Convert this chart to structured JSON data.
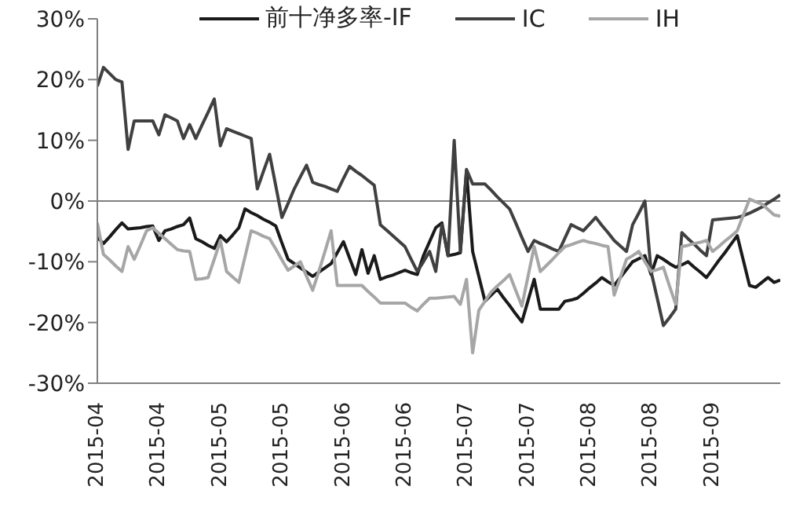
{
  "chart_data": {
    "type": "line",
    "categories": [
      "2015-04",
      null,
      null,
      null,
      null,
      null,
      null,
      null,
      null,
      null,
      "2015-04",
      null,
      null,
      null,
      null,
      null,
      null,
      null,
      null,
      null,
      "2015-05",
      null,
      null,
      null,
      null,
      null,
      null,
      null,
      null,
      null,
      "2015-05",
      null,
      null,
      null,
      null,
      null,
      null,
      null,
      null,
      null,
      "2015-06",
      null,
      null,
      null,
      null,
      null,
      null,
      null,
      null,
      null,
      "2015-06",
      null,
      null,
      null,
      null,
      null,
      null,
      null,
      null,
      null,
      "2015-07",
      null,
      null,
      null,
      null,
      null,
      null,
      null,
      null,
      null,
      "2015-07",
      null,
      null,
      null,
      null,
      null,
      null,
      null,
      null,
      null,
      "2015-08",
      null,
      null,
      null,
      null,
      null,
      null,
      null,
      null,
      null,
      "2015-08",
      null,
      null,
      null,
      null,
      null,
      null,
      null,
      null,
      null,
      "2015-09",
      null,
      null,
      null,
      null,
      null,
      null,
      null,
      null,
      null,
      null,
      null
    ],
    "ylim": [
      -30,
      30
    ],
    "yticks": [
      {
        "value": -30,
        "label": "-30%"
      },
      {
        "value": -20,
        "label": "-20%"
      },
      {
        "value": -10,
        "label": "-10%"
      },
      {
        "value": 0,
        "label": "0%"
      },
      {
        "value": 10,
        "label": "10%"
      },
      {
        "value": 20,
        "label": "20%"
      },
      {
        "value": 30,
        "label": "30%"
      }
    ],
    "grid": false,
    "legend": "top",
    "marker": "none",
    "line_style": "solid",
    "ref_lines": [
      {
        "axis": "y",
        "value": 0,
        "color": "#808080"
      }
    ],
    "series": [
      {
        "name": "前十净多率-IF",
        "color": "#1a1a1a",
        "values": [
          -6,
          -7,
          -5.9,
          -4.7,
          -3.6,
          -4.6,
          -4.5,
          -4.4,
          -4.2,
          -4.1,
          -6.5,
          -4.9,
          -4.6,
          -4.2,
          -3.9,
          -2.8,
          -6.2,
          -6.7,
          -7.3,
          -7.8,
          -5.7,
          -6.7,
          -5.6,
          -4.4,
          -1.3,
          -1.9,
          -2.4,
          -3,
          -3.5,
          -4.1,
          -6.9,
          -9.6,
          -10.3,
          -11,
          -11.7,
          -12.4,
          -11.7,
          -11,
          -10.3,
          -8.5,
          -6.7,
          -9.4,
          -12.1,
          -8,
          -11.9,
          -9,
          -12.9,
          -12.5,
          -12.2,
          -11.8,
          -11.4,
          -11.8,
          -12.1,
          -9,
          -6.7,
          -4.4,
          -3.6,
          -9,
          -8.8,
          -8.5,
          5,
          -8.3,
          -12.4,
          -16.5,
          -15.5,
          -14.5,
          -15.9,
          -17.2,
          -18.6,
          -19.9,
          -16.4,
          -12.9,
          -17.8,
          -17.8,
          -17.8,
          -17.8,
          -16.5,
          -16.3,
          -16,
          -15.2,
          -14.3,
          -13.5,
          -12.6,
          -13.3,
          -13.9,
          -12.6,
          -11.3,
          -10,
          -9.5,
          -9,
          -12.1,
          -9,
          -9.6,
          -10.3,
          -10.9,
          -10.5,
          -10,
          -10.9,
          -11.7,
          -12.6,
          -11.2,
          -9.8,
          -8.5,
          -7.1,
          -5.7,
          -9.8,
          -13.9,
          -14.2,
          -13.4,
          -12.6,
          -13.4,
          -13
        ]
      },
      {
        "name": "IC",
        "color": "#404040",
        "values": [
          18.9,
          22,
          21,
          20,
          19.6,
          8.5,
          13.2,
          13.2,
          13.2,
          13.2,
          10.9,
          14.2,
          13.7,
          13.2,
          10.3,
          12.6,
          10.3,
          12.5,
          14.6,
          16.8,
          9.1,
          11.9,
          11.5,
          11.1,
          10.7,
          10.3,
          2,
          4.9,
          7.7,
          2.5,
          -2.7,
          -0.4,
          2,
          4,
          5.9,
          3.1,
          2.7,
          2.4,
          2,
          1.6,
          3.7,
          5.7,
          4.9,
          4.2,
          3.4,
          2.6,
          -3.9,
          -4.8,
          -5.7,
          -6.6,
          -7.5,
          -9.6,
          -11.6,
          -10,
          -8.3,
          -11.6,
          -3.9,
          -9,
          10,
          -8.3,
          5.2,
          2.8,
          2.8,
          2.8,
          1.8,
          0.7,
          -0.3,
          -1.3,
          -3.6,
          -6,
          -8.3,
          -6.5,
          -7,
          -7.4,
          -7.9,
          -8.3,
          -6.1,
          -3.9,
          -4.4,
          -4.9,
          -3.8,
          -2.7,
          -4,
          -5.2,
          -6.5,
          -7.4,
          -8.3,
          -3.9,
          -2,
          0,
          -11.6,
          -16,
          -20.5,
          -19.2,
          -17.8,
          -5.2,
          -6.2,
          -7.1,
          -8.1,
          -9,
          -3.1,
          -3,
          -2.9,
          -2.8,
          -2.7,
          -2.4,
          -2,
          -1.5,
          -1,
          -0.3,
          0.3,
          1
        ]
      },
      {
        "name": "IH",
        "color": "#a6a6a6",
        "values": [
          -3.6,
          -8.8,
          -9.7,
          -10.7,
          -11.6,
          -7.5,
          -9.6,
          -7.3,
          -4.9,
          -4.4,
          -5.3,
          -6.2,
          -7.1,
          -8,
          -8.2,
          -8.3,
          -12.9,
          -12.8,
          -12.6,
          -9.6,
          -6.5,
          -11.6,
          -12.5,
          -13.4,
          -9.2,
          -4.9,
          -5.3,
          -5.8,
          -6.2,
          -7.9,
          -9.7,
          -11.4,
          -10.7,
          -10,
          -12.4,
          -14.7,
          -11.6,
          -8.3,
          -4.9,
          -13.9,
          -13.9,
          -13.9,
          -13.9,
          -13.9,
          -14.9,
          -15.8,
          -16.8,
          -16.8,
          -16.8,
          -16.8,
          -16.8,
          -17.5,
          -18.1,
          -17,
          -16,
          -16,
          -15.9,
          -15.8,
          -15.7,
          -17,
          -12.9,
          -25,
          -18,
          -16.5,
          -15,
          -14,
          -13.1,
          -12.1,
          -14.7,
          -17.3,
          -12.4,
          -7.5,
          -11.6,
          -10.6,
          -9.6,
          -8.5,
          -7.5,
          -7.2,
          -6.8,
          -6.5,
          -6.8,
          -7,
          -7.3,
          -7.5,
          -15.5,
          -12.6,
          -9.6,
          -9,
          -8.3,
          -10,
          -11.6,
          -11.3,
          -10.9,
          -14,
          -17,
          -7.5,
          -7.3,
          -7,
          -6.8,
          -6.5,
          -8.3,
          -7.5,
          -6.6,
          -5.8,
          -4.9,
          -2.3,
          0.3,
          -0.1,
          -0.5,
          -1.4,
          -2.3,
          -2.5
        ]
      }
    ]
  }
}
